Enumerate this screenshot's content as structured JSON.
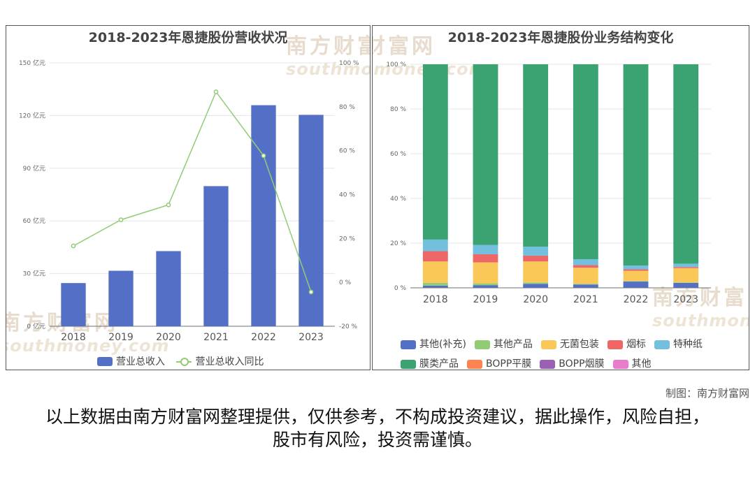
{
  "left_chart": {
    "watermark": {
      "cn": "南方财富网",
      "en": "southmoney.com"
    }
  },
  "right_chart": {
    "watermark": {
      "cn": "南方财富网",
      "en": "southmoney.com"
    }
  },
  "footer": {
    "credit": "制图：南方财富网",
    "disclaimer": "以上数据由南方财富网整理提供，仅供参考，不构成投资建议，据此操作，风险自担，股市有风险，投资需谨慎。"
  },
  "chart_data": [
    {
      "type": "bar",
      "title": "2018-2023年恩捷股份营收状况",
      "categories": [
        "2018",
        "2019",
        "2020",
        "2021",
        "2022",
        "2023"
      ],
      "left_axis": {
        "ticks": [
          "0 亿元",
          "30 亿元",
          "60 亿元",
          "90 亿元",
          "120 亿元",
          "150 亿元"
        ],
        "ylim": [
          0,
          150
        ]
      },
      "right_axis": {
        "ticks": [
          "-20 %",
          "0 %",
          "20 %",
          "40 %",
          "60 %",
          "80 %",
          "100 %"
        ],
        "ylim": [
          -20,
          100
        ]
      },
      "series": [
        {
          "name": "营业总收入",
          "type": "bar",
          "axis": "left",
          "color": "#5470c6",
          "values": [
            24.6,
            31.6,
            42.8,
            79.8,
            125.9,
            120.4
          ]
        },
        {
          "name": "营业总收入同比",
          "type": "line",
          "axis": "right",
          "color": "#91cc75",
          "values": [
            16.6,
            28.5,
            35.3,
            86.8,
            57.7,
            -4.4
          ]
        }
      ],
      "legend": "bottom",
      "grid": true
    },
    {
      "type": "bar",
      "stacked": true,
      "title": "2018-2023年恩捷股份业务结构变化",
      "categories": [
        "2018",
        "2019",
        "2020",
        "2021",
        "2022",
        "2023"
      ],
      "y_axis": {
        "ticks": [
          "0 %",
          "20 %",
          "40 %",
          "60 %",
          "80 %",
          "100 %"
        ],
        "ylim": [
          0,
          100
        ]
      },
      "series": [
        {
          "name": "其他(补充)",
          "color": "#5470c6",
          "values": [
            1.0,
            1.2,
            1.8,
            1.5,
            2.8,
            2.2
          ]
        },
        {
          "name": "其他产品",
          "color": "#91cc75",
          "values": [
            1.2,
            0.8,
            0.6,
            0.3,
            0.2,
            0.2
          ]
        },
        {
          "name": "无菌包装",
          "color": "#fac858",
          "values": [
            9.6,
            9.4,
            9.4,
            7.2,
            4.6,
            6.4
          ]
        },
        {
          "name": "烟标",
          "color": "#ee6666",
          "values": [
            4.6,
            3.6,
            2.6,
            1.2,
            0.7,
            0.5
          ]
        },
        {
          "name": "特种纸",
          "color": "#73c0de",
          "values": [
            5.2,
            4.2,
            4.0,
            2.6,
            1.7,
            1.5
          ]
        },
        {
          "name": "膜类产品",
          "color": "#3ba272",
          "values": [
            78.4,
            80.8,
            81.6,
            87.2,
            90.0,
            89.2
          ]
        },
        {
          "name": "BOPP平膜",
          "color": "#fc8452",
          "values": [
            0,
            0,
            0,
            0,
            0,
            0
          ]
        },
        {
          "name": "BOPP烟膜",
          "color": "#9a60b4",
          "values": [
            0,
            0,
            0,
            0,
            0,
            0
          ]
        },
        {
          "name": "其他",
          "color": "#ea7ccc",
          "values": [
            0,
            0,
            0,
            0,
            0,
            0
          ]
        }
      ],
      "legend": "bottom",
      "grid": true
    }
  ]
}
